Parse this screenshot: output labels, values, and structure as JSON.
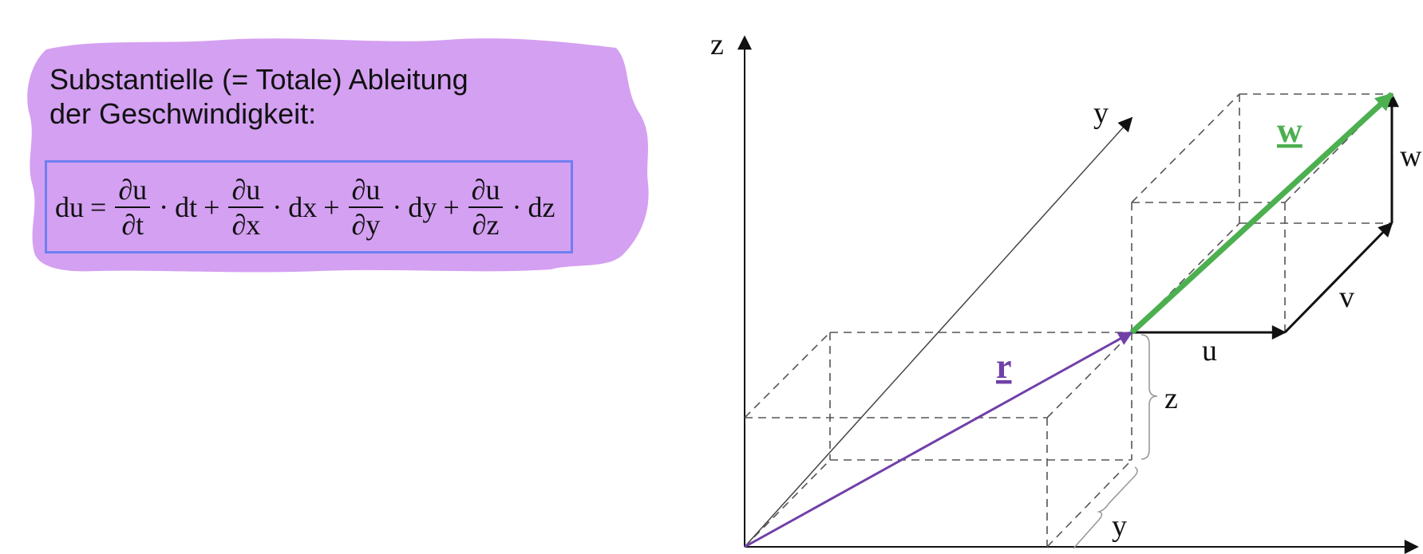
{
  "note": {
    "line1": "Substantielle (= Totale) Ableitung",
    "line2": "der Geschwindigkeit:",
    "color": "#d4a0f2"
  },
  "formula": {
    "lhs": "du",
    "eq": "=",
    "plus": "+",
    "dot": "·",
    "terms": [
      {
        "num": "∂u",
        "den": "∂t",
        "diff": "dt"
      },
      {
        "num": "∂u",
        "den": "∂x",
        "diff": "dx"
      },
      {
        "num": "∂u",
        "den": "∂y",
        "diff": "dy"
      },
      {
        "num": "∂u",
        "den": "∂z",
        "diff": "dz"
      }
    ],
    "border_color": "#6f7ff0"
  },
  "diagram": {
    "axes": {
      "z": "z",
      "y": "y"
    },
    "vectors": {
      "r": {
        "label": "r",
        "color": "#7040a8"
      },
      "w": {
        "label": "w",
        "color": "#4caf50"
      }
    },
    "components": {
      "u": "u",
      "v": "v",
      "w": "w"
    },
    "dimensions": {
      "z": "z",
      "y": "y"
    }
  }
}
